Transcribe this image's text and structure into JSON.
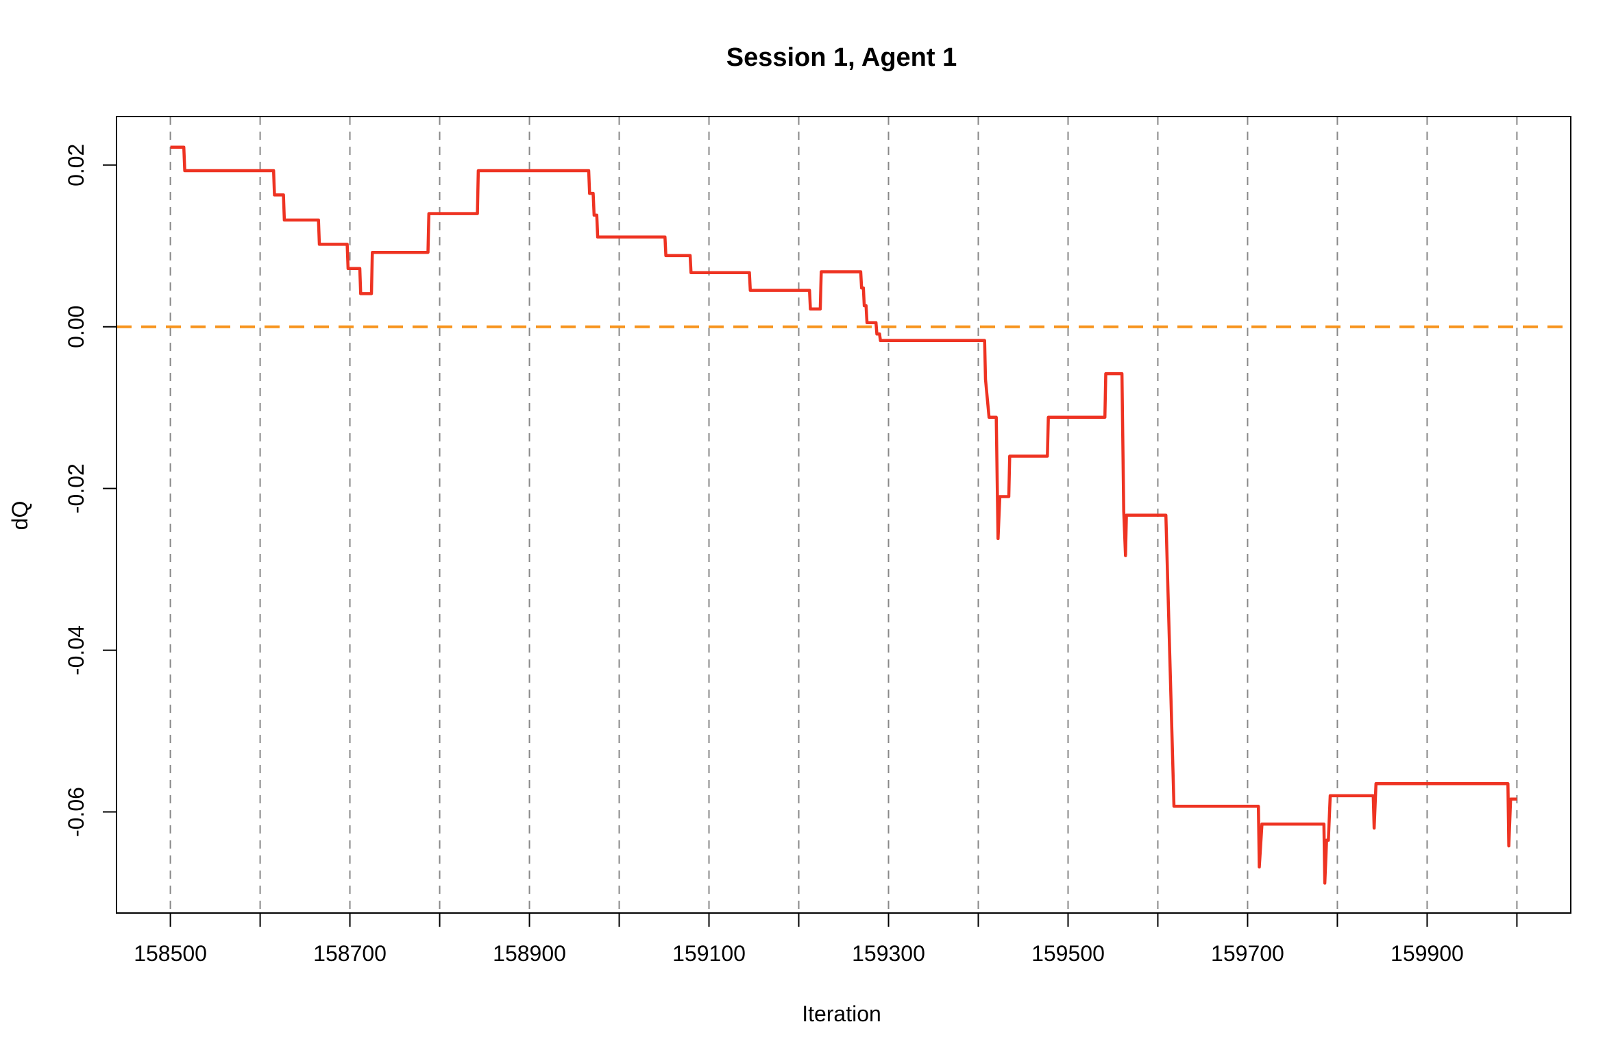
{
  "chart_data": {
    "type": "line",
    "title": "Session 1, Agent 1",
    "xlabel": "Iteration",
    "ylabel": "dQ",
    "xlim": [
      158440,
      160060
    ],
    "ylim": [
      -0.0725,
      0.026
    ],
    "xticks": [
      158500,
      158600,
      158700,
      158800,
      158900,
      159000,
      159100,
      159200,
      159300,
      159400,
      159500,
      159600,
      159700,
      159800,
      159900,
      160000
    ],
    "xtick_labels": [
      "158500",
      "158700",
      "158900",
      "159100",
      "159300",
      "159500",
      "159700",
      "159900"
    ],
    "xtick_labels_at": [
      158500,
      158700,
      158900,
      159100,
      159300,
      159500,
      159700,
      159900
    ],
    "yticks": [
      0.02,
      0.0,
      -0.02,
      -0.04,
      -0.06
    ],
    "ytick_labels": [
      "0.02",
      "0.00",
      "-0.02",
      "-0.04",
      "-0.06"
    ],
    "vertical_grid": [
      158500,
      158600,
      158700,
      158800,
      158900,
      159000,
      159100,
      159200,
      159300,
      159400,
      159500,
      159600,
      159700,
      159800,
      159900,
      160000
    ],
    "hline": {
      "y": 0.0,
      "color": "#f7941d",
      "style": "dashed"
    },
    "series": [
      {
        "color": "#ee3322",
        "x": [
          158500,
          158515,
          158516,
          158615,
          158616,
          158626,
          158627,
          158665,
          158666,
          158697,
          158698,
          158711,
          158712,
          158724,
          158725,
          158787,
          158788,
          158842,
          158843,
          158966,
          158967,
          158971,
          158972,
          158975,
          158976,
          159051,
          159052,
          159079,
          159080,
          159145,
          159146,
          159212,
          159213,
          159224,
          159225,
          159269,
          159270,
          159272,
          159273,
          159275,
          159276,
          159278,
          159279,
          159286,
          159287,
          159290,
          159291,
          159407,
          159408,
          159412,
          159413,
          159420,
          159422,
          159424,
          159426,
          159434,
          159435,
          159477,
          159478,
          159541,
          159542,
          159560,
          159562,
          159564,
          159565,
          159570,
          159571,
          159609,
          159618,
          159620,
          159621,
          159712,
          159713,
          159716,
          159717,
          159785,
          159786,
          159788,
          159790,
          159792,
          159793,
          159840,
          159841,
          159843,
          159844,
          159990,
          159991,
          159993,
          159994,
          160000
        ],
        "y": [
          0.0222,
          0.0222,
          0.0193,
          0.0193,
          0.0163,
          0.0163,
          0.0132,
          0.0132,
          0.0102,
          0.0102,
          0.0072,
          0.0072,
          0.0041,
          0.0041,
          0.0092,
          0.0092,
          0.014,
          0.014,
          0.0193,
          0.0193,
          0.0165,
          0.0165,
          0.0138,
          0.0138,
          0.0111,
          0.0111,
          0.0088,
          0.0088,
          0.0067,
          0.0067,
          0.0045,
          0.0045,
          0.0022,
          0.0022,
          0.0068,
          0.0068,
          0.0048,
          0.0048,
          0.0026,
          0.0026,
          0.0005,
          0.0005,
          0.0005,
          0.0005,
          -0.0009,
          -0.0009,
          -0.0017,
          -0.0017,
          -0.0065,
          -0.0112,
          -0.0112,
          -0.0112,
          -0.0262,
          -0.021,
          -0.021,
          -0.021,
          -0.016,
          -0.016,
          -0.0112,
          -0.0112,
          -0.0058,
          -0.0058,
          -0.0228,
          -0.0283,
          -0.0233,
          -0.0233,
          -0.0233,
          -0.0233,
          -0.0593,
          -0.0593,
          -0.0593,
          -0.0593,
          -0.0668,
          -0.0615,
          -0.0615,
          -0.0615,
          -0.0688,
          -0.0635,
          -0.0635,
          -0.058,
          -0.058,
          -0.058,
          -0.062,
          -0.0565,
          -0.0565,
          -0.0565,
          -0.0642,
          -0.0584,
          -0.0584,
          -0.0584
        ]
      }
    ]
  }
}
